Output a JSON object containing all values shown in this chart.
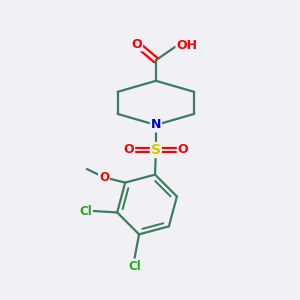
{
  "background_color": "#f0f0f5",
  "bond_color": "#3a7d5f",
  "bond_width": 1.6,
  "atom_colors": {
    "O": "#ff0000",
    "N": "#0000cc",
    "S": "#cccc00",
    "Cl": "#22aa22",
    "C": "#3a7d5f",
    "H": "#808080"
  },
  "figsize": [
    3.0,
    3.0
  ],
  "dpi": 100,
  "xlim": [
    0,
    10
  ],
  "ylim": [
    0,
    10
  ]
}
